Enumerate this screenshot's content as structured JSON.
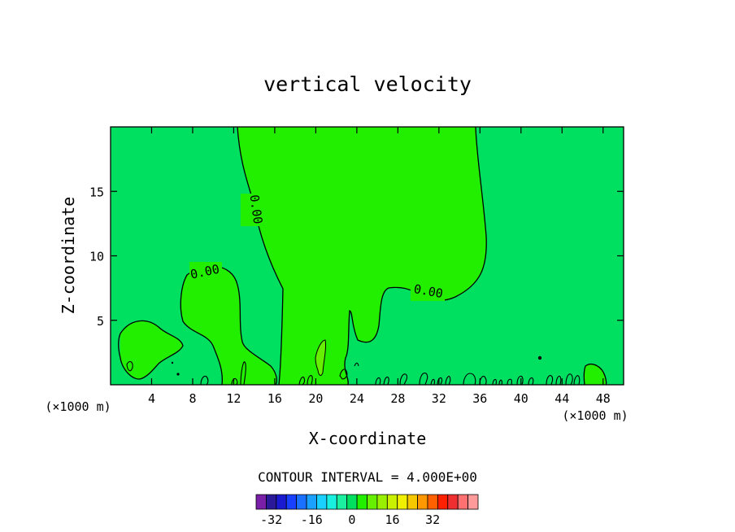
{
  "chart_data": {
    "type": "contour",
    "title": "vertical velocity",
    "xlabel": "X-coordinate",
    "ylabel": "Z-coordinate",
    "x_unit_left": "(×1000 m)",
    "x_unit_right": "(×1000 m)",
    "xlim": [
      0,
      50
    ],
    "ylim": [
      0,
      20
    ],
    "x_ticks": [
      4,
      8,
      12,
      16,
      20,
      24,
      28,
      32,
      36,
      40,
      44,
      48
    ],
    "y_ticks": [
      5,
      10,
      15
    ],
    "contour_interval_label": "CONTOUR INTERVAL = 4.000E+00",
    "contour_labels": [
      "0.00",
      "0.00",
      "0.00"
    ],
    "colorbar": {
      "levels": [
        -36,
        -32,
        -28,
        -24,
        -20,
        -16,
        -12,
        -8,
        -4,
        0,
        4,
        8,
        12,
        16,
        20,
        24,
        28,
        32,
        36
      ],
      "colors": [
        "#7a1fa8",
        "#2a1a9a",
        "#1a1ad0",
        "#1a40ff",
        "#1a70ff",
        "#1aa0ff",
        "#1ad0ff",
        "#1af0e0",
        "#1af0a0",
        "#00e060",
        "#22ee00",
        "#66f000",
        "#99f000",
        "#c8f000",
        "#f0f000",
        "#f5c800",
        "#ff9800",
        "#ff6000",
        "#ff2000",
        "#f03030",
        "#ff7070",
        "#ff9a9a"
      ],
      "tick_labels": [
        "-32",
        "-16",
        "0",
        "16",
        "32"
      ],
      "tick_values": [
        -32,
        -16,
        0,
        16,
        32
      ]
    },
    "background_color": "#00e060",
    "positive_region_color": "#22ee00"
  }
}
